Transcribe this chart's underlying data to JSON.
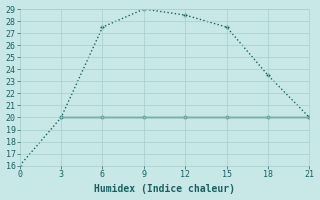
{
  "xlabel": "Humidex (Indice chaleur)",
  "bg_color": "#c8e8e8",
  "line1_x": [
    0,
    3,
    6,
    9,
    12,
    15,
    18,
    21
  ],
  "line1_y": [
    16,
    20,
    27.5,
    29,
    28.5,
    27.5,
    23.5,
    20
  ],
  "line2_x": [
    3,
    6,
    9,
    12,
    15,
    18,
    21
  ],
  "line2_y": [
    20,
    20,
    20,
    20,
    20,
    20,
    20
  ],
  "line_color": "#1a6060",
  "xlim": [
    0,
    21
  ],
  "ylim": [
    16,
    29
  ],
  "xticks": [
    0,
    3,
    6,
    9,
    12,
    15,
    18,
    21
  ],
  "yticks": [
    16,
    17,
    18,
    19,
    20,
    21,
    22,
    23,
    24,
    25,
    26,
    27,
    28,
    29
  ],
  "grid_color": "#a8cece",
  "axis_fontsize": 7,
  "tick_fontsize": 6
}
